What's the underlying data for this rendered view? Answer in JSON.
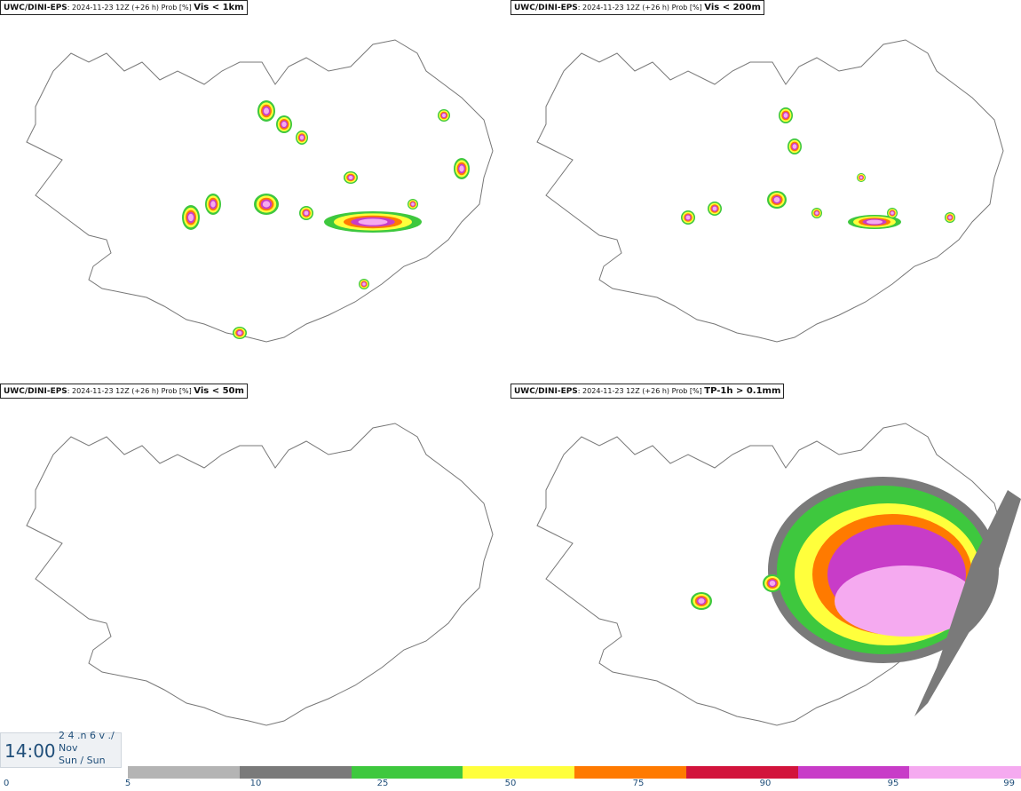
{
  "panels": [
    {
      "source": "UWC/DINI-EPS",
      "meta": "2024-11-23 12Z (+26 h) Prob [%]",
      "variable": "Vis < 1km"
    },
    {
      "source": "UWC/DINI-EPS",
      "meta": "2024-11-23 12Z (+26 h) Prob [%]",
      "variable": "Vis < 200m"
    },
    {
      "source": "UWC/DINI-EPS",
      "meta": "2024-11-23 12Z (+26 h) Prob [%]",
      "variable": "Vis < 50m"
    },
    {
      "source": "UWC/DINI-EPS",
      "meta": "2024-11-23 12Z (+26 h) Prob [%]",
      "variable": "TP-1h > 0.1mm"
    }
  ],
  "valid_time": {
    "time": "14:00",
    "line1": "2 4 .n 6 v ./",
    "line2": "Nov",
    "line3": "Sun / Sun"
  },
  "colorbar": {
    "colors": [
      "#b4b4b4",
      "#7a7a7a",
      "#3ec83e",
      "#ffff3c",
      "#ff7a00",
      "#d2143c",
      "#c83cc8",
      "#f5aaf0"
    ],
    "ticks": [
      "0",
      "5",
      "10",
      "25",
      "50",
      "75",
      "90",
      "95",
      "99"
    ]
  }
}
